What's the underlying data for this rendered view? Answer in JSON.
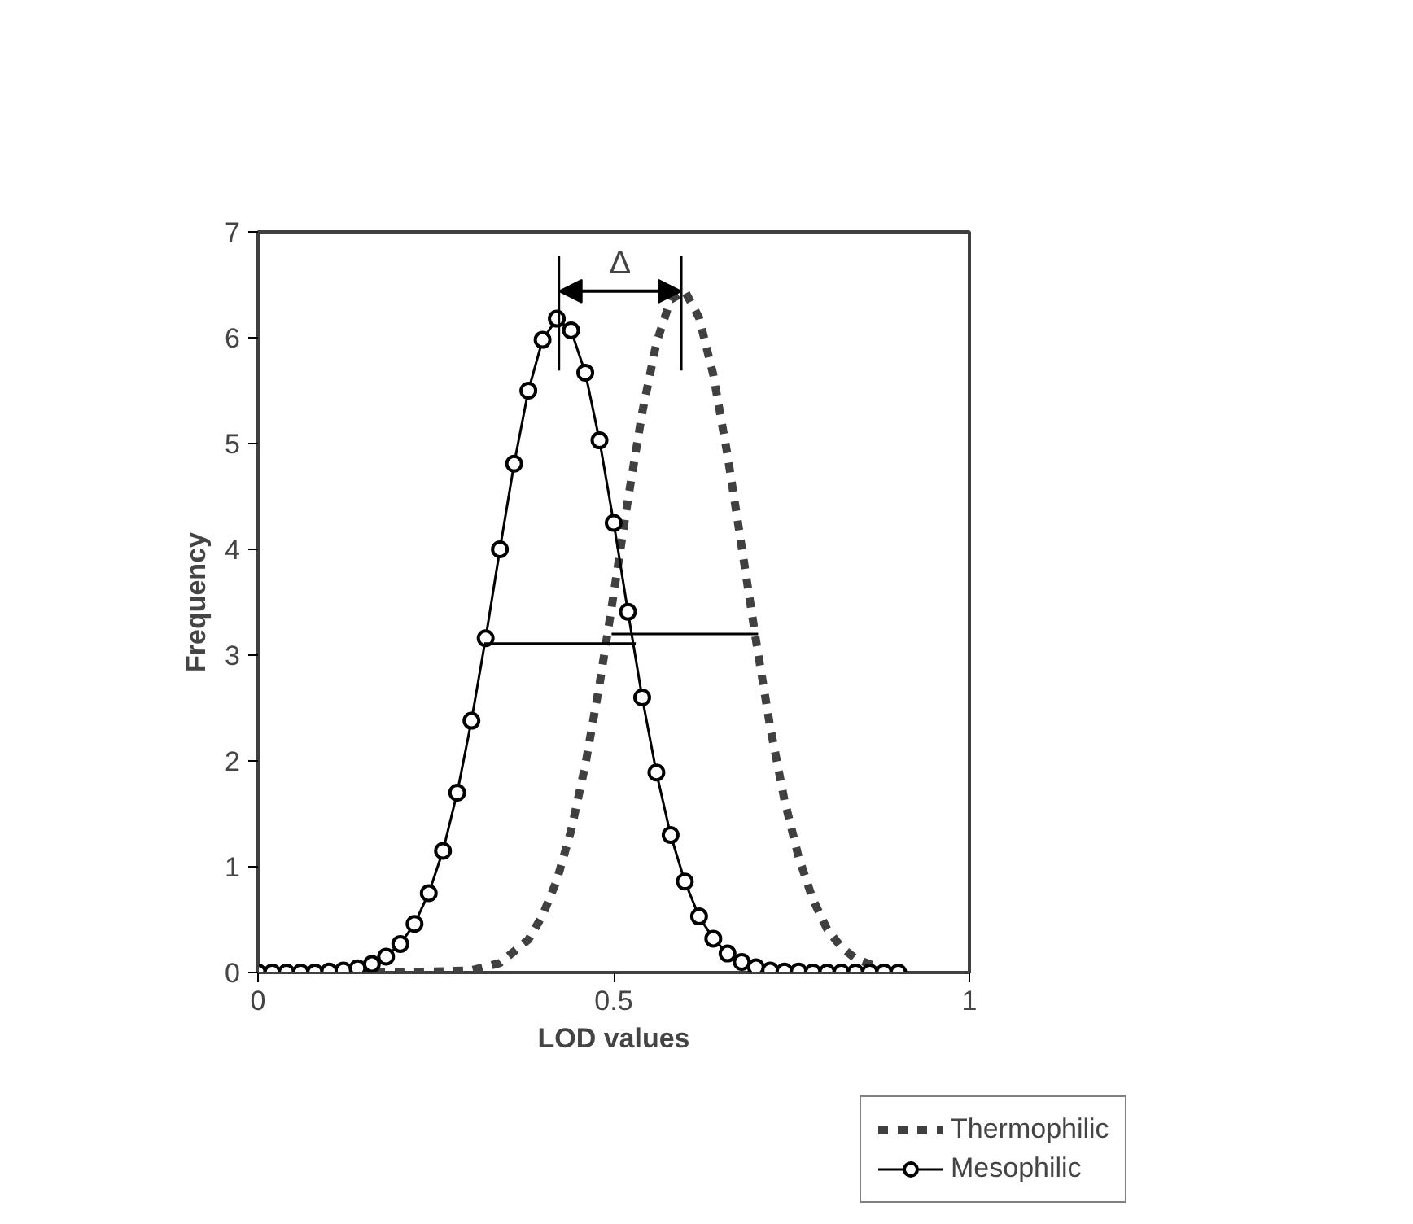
{
  "chart_data": {
    "type": "line",
    "xlabel": "LOD values",
    "ylabel": "Frequency",
    "xlim": [
      0,
      1
    ],
    "xticks": [
      0,
      0.5,
      1
    ],
    "ylim": [
      0,
      7
    ],
    "yticks": [
      0,
      1,
      2,
      3,
      4,
      5,
      6,
      7
    ],
    "grid": false,
    "legend": "bottom right",
    "annotations": [
      "Δ"
    ],
    "series": [
      {
        "name": "Thermophilic",
        "color": "#404040",
        "line_style": "dashed",
        "marker": "none",
        "x": [
          0,
          0.2,
          0.3,
          0.34,
          0.38,
          0.4,
          0.42,
          0.44,
          0.46,
          0.48,
          0.5,
          0.52,
          0.54,
          0.56,
          0.58,
          0.6,
          0.62,
          0.64,
          0.66,
          0.68,
          0.7,
          0.72,
          0.74,
          0.76,
          0.78,
          0.8,
          0.82,
          0.84,
          0.88,
          0.9
        ],
        "values": [
          0,
          0,
          0.02,
          0.09,
          0.31,
          0.54,
          0.87,
          1.34,
          1.96,
          2.72,
          3.58,
          4.47,
          5.29,
          5.95,
          6.36,
          6.44,
          6.19,
          5.65,
          4.89,
          4.02,
          3.14,
          2.32,
          1.63,
          1.09,
          0.69,
          0.41,
          0.24,
          0.13,
          0.03,
          0.01
        ]
      },
      {
        "name": "Mesophilic",
        "color": "#000000",
        "line_style": "solid",
        "marker": "circle",
        "x": [
          0,
          0.02,
          0.04,
          0.06,
          0.08,
          0.1,
          0.12,
          0.14,
          0.16,
          0.18,
          0.2,
          0.22,
          0.24,
          0.26,
          0.28,
          0.3,
          0.32,
          0.34,
          0.36,
          0.38,
          0.4,
          0.42,
          0.44,
          0.46,
          0.48,
          0.5,
          0.52,
          0.54,
          0.56,
          0.58,
          0.6,
          0.62,
          0.64,
          0.66,
          0.68,
          0.7,
          0.72,
          0.74,
          0.76,
          0.78,
          0.8,
          0.82,
          0.84,
          0.86,
          0.88,
          0.9
        ],
        "values": [
          0,
          0,
          0,
          0,
          0,
          0.01,
          0.02,
          0.04,
          0.08,
          0.15,
          0.27,
          0.46,
          0.75,
          1.15,
          1.7,
          2.38,
          3.16,
          4.0,
          4.81,
          5.5,
          5.98,
          6.18,
          6.07,
          5.67,
          5.03,
          4.25,
          3.41,
          2.6,
          1.89,
          1.3,
          0.86,
          0.53,
          0.32,
          0.18,
          0.1,
          0.05,
          0.02,
          0.01,
          0.01,
          0,
          0,
          0,
          0,
          0,
          0,
          0
        ]
      },
      {
        "color": "#000000",
        "line_style": "solid",
        "marker": "none",
        "x": [
          0.318,
          0.531
        ],
        "values": [
          3.11,
          3.11
        ]
      },
      {
        "color": "#000000",
        "line_style": "solid",
        "marker": "none",
        "x": [
          0.497,
          0.703
        ],
        "values": [
          3.2,
          3.2
        ]
      },
      {
        "color": "#000000",
        "line_style": "solid",
        "marker": "none",
        "x": [
          0.423,
          0.423
        ],
        "values": [
          5.69,
          6.77
        ]
      },
      {
        "color": "#000000",
        "line_style": "solid",
        "marker": "none",
        "x": [
          0.595,
          0.595
        ],
        "values": [
          5.69,
          6.77
        ]
      }
    ]
  }
}
